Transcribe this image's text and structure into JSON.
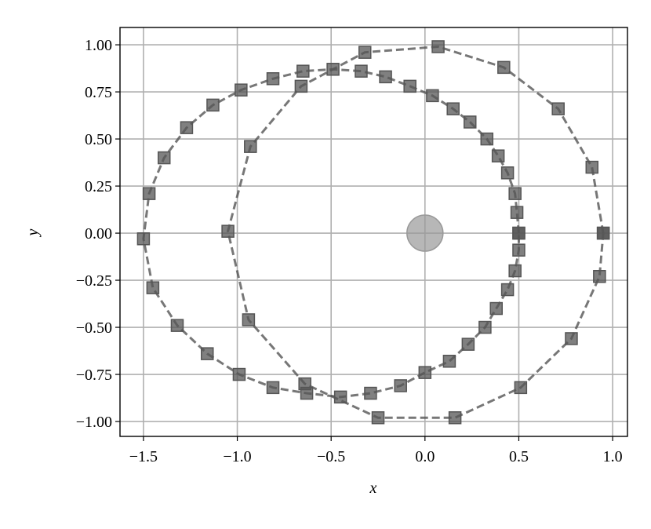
{
  "chart_data": {
    "type": "line",
    "x_label": "x",
    "y_label": "y",
    "xlim": [
      -1.625,
      1.079
    ],
    "ylim": [
      -1.079,
      1.092
    ],
    "xticks": [
      {
        "value": -1.5,
        "label": "−1.5"
      },
      {
        "value": -1.0,
        "label": "−1.0"
      },
      {
        "value": -0.5,
        "label": "−0.5"
      },
      {
        "value": 0.0,
        "label": "0.0"
      },
      {
        "value": 0.5,
        "label": "0.5"
      },
      {
        "value": 1.0,
        "label": "1.0"
      }
    ],
    "yticks": [
      {
        "value": -1.0,
        "label": "−1.00"
      },
      {
        "value": -0.75,
        "label": "−0.75"
      },
      {
        "value": -0.5,
        "label": "−0.50"
      },
      {
        "value": -0.25,
        "label": "−0.25"
      },
      {
        "value": 0.0,
        "label": "0.00"
      },
      {
        "value": 0.25,
        "label": "0.25"
      },
      {
        "value": 0.5,
        "label": "0.50"
      },
      {
        "value": 0.75,
        "label": "0.75"
      },
      {
        "value": 1.0,
        "label": "1.00"
      }
    ],
    "grid": true,
    "series": [
      {
        "color": "#555555",
        "marker": "square",
        "linestyle": "dashed",
        "x": [
          0.95,
          0.89,
          0.71,
          0.42,
          0.07,
          -0.32,
          -0.66,
          -0.93,
          -1.05,
          -0.94,
          -0.64,
          -0.25,
          0.16,
          0.51,
          0.78,
          0.93,
          0.95
        ],
        "values": [
          0.0,
          0.35,
          0.66,
          0.88,
          0.99,
          0.96,
          0.78,
          0.46,
          0.01,
          -0.46,
          -0.8,
          -0.98,
          -0.98,
          -0.82,
          -0.56,
          -0.23,
          0.0
        ]
      },
      {
        "color": "#555555",
        "marker": "square",
        "linestyle": "dashed",
        "x": [
          0.5,
          0.49,
          0.48,
          0.44,
          0.39,
          0.33,
          0.24,
          0.15,
          0.04,
          -0.08,
          -0.21,
          -0.34,
          -0.49,
          -0.65,
          -0.81,
          -0.98,
          -1.13,
          -1.27,
          -1.39,
          -1.47,
          -1.5,
          -1.45,
          -1.32,
          -1.16,
          -0.99,
          -0.81,
          -0.63,
          -0.45,
          -0.29,
          -0.13,
          0.0,
          0.13,
          0.23,
          0.32,
          0.38,
          0.44,
          0.48,
          0.5,
          0.5
        ],
        "values": [
          0.0,
          0.11,
          0.21,
          0.32,
          0.41,
          0.5,
          0.59,
          0.66,
          0.73,
          0.78,
          0.83,
          0.86,
          0.87,
          0.86,
          0.82,
          0.76,
          0.68,
          0.56,
          0.4,
          0.21,
          -0.03,
          -0.29,
          -0.49,
          -0.64,
          -0.75,
          -0.82,
          -0.85,
          -0.87,
          -0.85,
          -0.81,
          -0.74,
          -0.68,
          -0.59,
          -0.5,
          -0.4,
          -0.3,
          -0.2,
          -0.09,
          0.0
        ]
      },
      {
        "color": "#999999",
        "marker": "circle",
        "linestyle": "none",
        "x": [
          0.0
        ],
        "values": [
          0.0
        ]
      }
    ]
  }
}
